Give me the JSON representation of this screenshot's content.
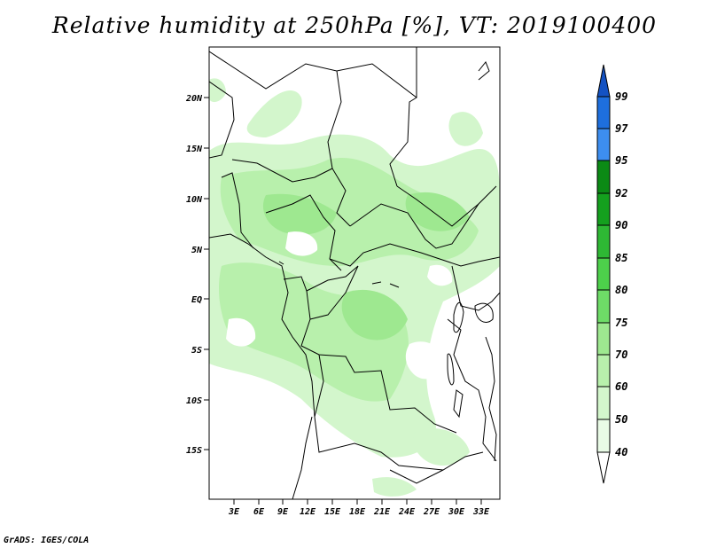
{
  "title": "Relative humidity at 250hPa [%], VT: 2019100400",
  "credit": "GrADS: IGES/COLA",
  "map": {
    "lon_range": [
      0,
      36
    ],
    "lat_range": [
      -20,
      25
    ],
    "lat_ticks": [
      "20N",
      "15N",
      "10N",
      "5N",
      "EQ",
      "5S",
      "10S",
      "15S"
    ],
    "lon_ticks": [
      "3E",
      "6E",
      "9E",
      "12E",
      "15E",
      "18E",
      "21E",
      "24E",
      "27E",
      "30E",
      "33E"
    ]
  },
  "colorbar": {
    "levels": [
      "40",
      "50",
      "60",
      "70",
      "75",
      "80",
      "85",
      "90",
      "92",
      "95",
      "97",
      "99"
    ],
    "colors": [
      "#ffffff",
      "#e9fbe6",
      "#d3f6cc",
      "#b8f0ac",
      "#9ee890",
      "#6edc67",
      "#4dd04b",
      "#2eb834",
      "#14a01e",
      "#0b8a15",
      "#3d8ef0",
      "#1e6fde",
      "#1452c2"
    ]
  }
}
